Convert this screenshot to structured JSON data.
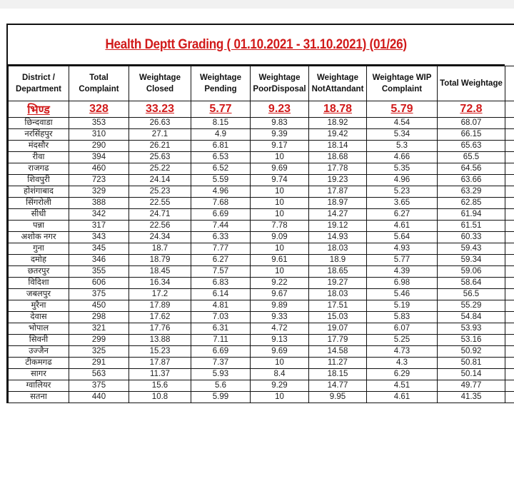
{
  "title": "Health Deptt Grading ( 01.10.2021 - 31.10.2021) (01/26)",
  "colors": {
    "highlight": "#d11a1a",
    "border": "#111111"
  },
  "columns": [
    "District / Department",
    "Total Complaint",
    "Weightage Closed",
    "Weightage Pending",
    "Weightage PoorDisposal",
    "Weightage NotAttandant",
    "Weightage WIP Complaint",
    "Total Weightage"
  ],
  "highlight_row": [
    "भिण्ड",
    "328",
    "33.23",
    "5.77",
    "9.23",
    "18.78",
    "5.79",
    "72.8"
  ],
  "rows": [
    [
      "छिन्दवाडा",
      "353",
      "26.63",
      "8.15",
      "9.83",
      "18.92",
      "4.54",
      "68.07"
    ],
    [
      "नरसिंहपुर",
      "310",
      "27.1",
      "4.9",
      "9.39",
      "19.42",
      "5.34",
      "66.15"
    ],
    [
      "मंदसौर",
      "290",
      "26.21",
      "6.81",
      "9.17",
      "18.14",
      "5.3",
      "65.63"
    ],
    [
      "रीवा",
      "394",
      "25.63",
      "6.53",
      "10",
      "18.68",
      "4.66",
      "65.5"
    ],
    [
      "राजगढ",
      "460",
      "25.22",
      "6.52",
      "9.69",
      "17.78",
      "5.35",
      "64.56"
    ],
    [
      "शिवपुरी",
      "723",
      "24.14",
      "5.59",
      "9.74",
      "19.23",
      "4.96",
      "63.66"
    ],
    [
      "होशंगाबाद",
      "329",
      "25.23",
      "4.96",
      "10",
      "17.87",
      "5.23",
      "63.29"
    ],
    [
      "सिंगरोली",
      "388",
      "22.55",
      "7.68",
      "10",
      "18.97",
      "3.65",
      "62.85"
    ],
    [
      "सीधी",
      "342",
      "24.71",
      "6.69",
      "10",
      "14.27",
      "6.27",
      "61.94"
    ],
    [
      "पन्ना",
      "317",
      "22.56",
      "7.44",
      "7.78",
      "19.12",
      "4.61",
      "61.51"
    ],
    [
      "अशोक नगर",
      "343",
      "24.34",
      "6.33",
      "9.09",
      "14.93",
      "5.64",
      "60.33"
    ],
    [
      "गुना",
      "345",
      "18.7",
      "7.77",
      "10",
      "18.03",
      "4.93",
      "59.43"
    ],
    [
      "दमोह",
      "346",
      "18.79",
      "6.27",
      "9.61",
      "18.9",
      "5.77",
      "59.34"
    ],
    [
      "छतरपुर",
      "355",
      "18.45",
      "7.57",
      "10",
      "18.65",
      "4.39",
      "59.06"
    ],
    [
      "विदिशा",
      "606",
      "16.34",
      "6.83",
      "9.22",
      "19.27",
      "6.98",
      "58.64"
    ],
    [
      "जबलपुर",
      "375",
      "17.2",
      "6.14",
      "9.67",
      "18.03",
      "5.46",
      "56.5"
    ],
    [
      "मुरैना",
      "450",
      "17.89",
      "4.81",
      "9.89",
      "17.51",
      "5.19",
      "55.29"
    ],
    [
      "देवास",
      "298",
      "17.62",
      "7.03",
      "9.33",
      "15.03",
      "5.83",
      "54.84"
    ],
    [
      "भोपाल",
      "321",
      "17.76",
      "6.31",
      "4.72",
      "19.07",
      "6.07",
      "53.93"
    ],
    [
      "सिवनी",
      "299",
      "13.88",
      "7.11",
      "9.13",
      "17.79",
      "5.25",
      "53.16"
    ],
    [
      "उज्जैन",
      "325",
      "15.23",
      "6.69",
      "9.69",
      "14.58",
      "4.73",
      "50.92"
    ],
    [
      "टीकमगढ",
      "291",
      "17.87",
      "7.37",
      "10",
      "11.27",
      "4.3",
      "50.81"
    ],
    [
      "सागर",
      "563",
      "11.37",
      "5.93",
      "8.4",
      "18.15",
      "6.29",
      "50.14"
    ],
    [
      "ग्वालियर",
      "375",
      "15.6",
      "5.6",
      "9.29",
      "14.77",
      "4.51",
      "49.77"
    ],
    [
      "सतना",
      "440",
      "10.8",
      "5.99",
      "10",
      "9.95",
      "4.61",
      "41.35"
    ]
  ]
}
